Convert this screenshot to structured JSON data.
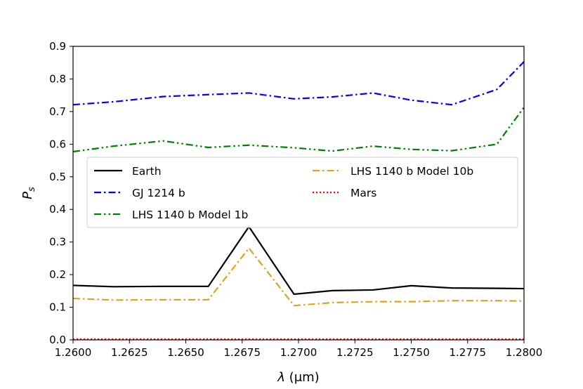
{
  "chart_data": {
    "type": "line",
    "title": "",
    "xlabel": "λ (μm)",
    "xlabel_parts": {
      "symbol": "λ",
      "unit": "(μm)"
    },
    "ylabel": "P_s",
    "ylabel_parts": {
      "main": "P",
      "sub": "s"
    },
    "xlim": [
      1.26,
      1.28
    ],
    "ylim": [
      0.0,
      0.9
    ],
    "xticks": [
      1.26,
      1.2625,
      1.265,
      1.2675,
      1.27,
      1.2725,
      1.275,
      1.2775,
      1.28
    ],
    "xtick_labels": [
      "1.2600",
      "1.2625",
      "1.2650",
      "1.2675",
      "1.2700",
      "1.2725",
      "1.2750",
      "1.2775",
      "1.2800"
    ],
    "yticks": [
      0.0,
      0.1,
      0.2,
      0.3,
      0.4,
      0.5,
      0.6,
      0.7,
      0.8,
      0.9
    ],
    "ytick_labels": [
      "0.0",
      "0.1",
      "0.2",
      "0.3",
      "0.4",
      "0.5",
      "0.6",
      "0.7",
      "0.8",
      "0.9"
    ],
    "grid": false,
    "legend": {
      "placement": "center-left",
      "columns": 2
    },
    "series": [
      {
        "name": "Earth",
        "color": "#000000",
        "linestyle": "solid",
        "x": [
          1.26,
          1.2618,
          1.264,
          1.266,
          1.2678,
          1.2698,
          1.2715,
          1.2733,
          1.275,
          1.2768,
          1.2788,
          1.28
        ],
        "y": [
          0.167,
          0.163,
          0.164,
          0.164,
          0.347,
          0.14,
          0.151,
          0.153,
          0.166,
          0.159,
          0.158,
          0.157
        ]
      },
      {
        "name": "GJ 1214 b",
        "color": "#0000ff",
        "linestyle": "dashdot",
        "x": [
          1.26,
          1.2618,
          1.264,
          1.266,
          1.2678,
          1.2698,
          1.2715,
          1.2733,
          1.275,
          1.2768,
          1.2788,
          1.28
        ],
        "y": [
          0.721,
          0.73,
          0.746,
          0.752,
          0.757,
          0.739,
          0.745,
          0.757,
          0.735,
          0.721,
          0.768,
          0.853
        ]
      },
      {
        "name": "LHS 1140 b Model 1b",
        "color": "#008000",
        "linestyle": "dashdotdot",
        "x": [
          1.26,
          1.2618,
          1.264,
          1.266,
          1.2678,
          1.2698,
          1.2715,
          1.2733,
          1.275,
          1.2768,
          1.2788,
          1.28
        ],
        "y": [
          0.577,
          0.594,
          0.61,
          0.59,
          0.597,
          0.589,
          0.579,
          0.594,
          0.584,
          0.58,
          0.6,
          0.713
        ]
      },
      {
        "name": "LHS 1140 b Model 10b",
        "color": "#daa520",
        "linestyle": "dashdot",
        "x": [
          1.26,
          1.2618,
          1.264,
          1.266,
          1.2678,
          1.2698,
          1.2715,
          1.2733,
          1.275,
          1.2768,
          1.2788,
          1.28
        ],
        "y": [
          0.127,
          0.122,
          0.123,
          0.123,
          0.281,
          0.105,
          0.114,
          0.117,
          0.117,
          0.12,
          0.12,
          0.119
        ]
      },
      {
        "name": "Mars",
        "color": "#ff0000",
        "linestyle": "dotted",
        "x": [
          1.26,
          1.28
        ],
        "y": [
          0.002,
          0.002
        ]
      }
    ]
  }
}
